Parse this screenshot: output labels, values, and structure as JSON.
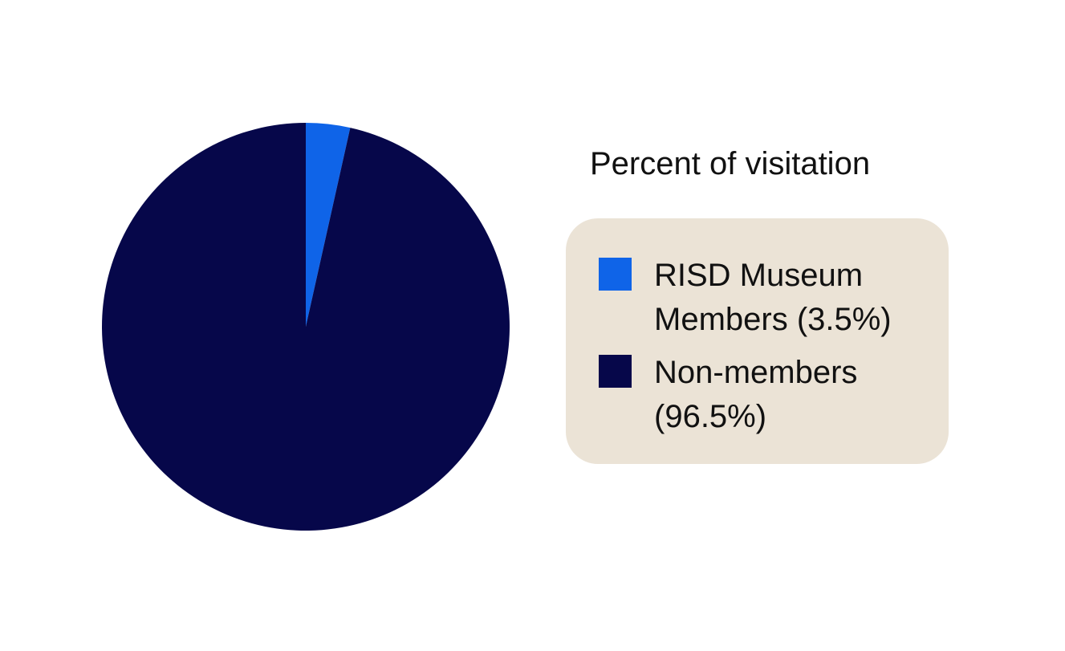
{
  "chart_data": {
    "type": "pie",
    "legend_title": "Percent of visitation",
    "categories": [
      "RISD Museum Members (3.5%)",
      "Non-members (96.5%)"
    ],
    "values": [
      3.5,
      96.5
    ],
    "colors": [
      "#0f64e8",
      "#06074a"
    ],
    "legend": "right"
  }
}
